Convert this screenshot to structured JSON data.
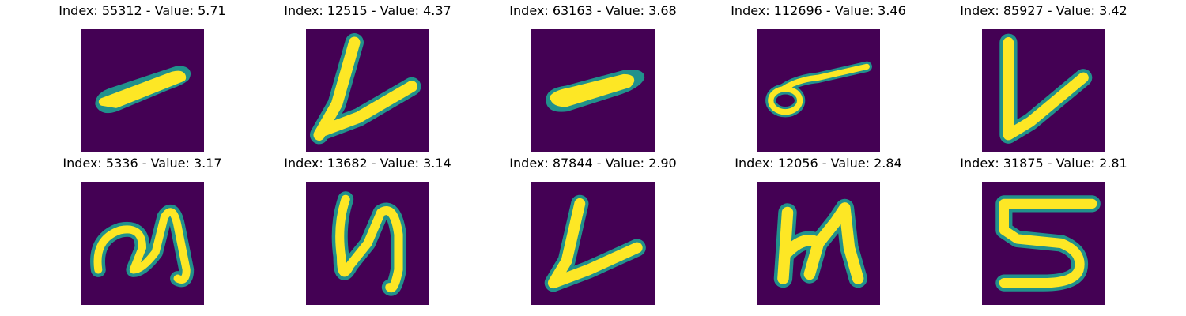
{
  "colors": {
    "background": "#440154",
    "stroke_core": "#fde725",
    "stroke_edge": "#21918c",
    "stroke_mid": "#5ec962"
  },
  "panels": [
    {
      "title": "Index: 55312 - Value: 5.71",
      "glyph": "dash-stroke"
    },
    {
      "title": "Index: 12515 - Value: 4.37",
      "glyph": "v-stroke"
    },
    {
      "title": "Index: 63163 - Value: 3.68",
      "glyph": "dash-stroke"
    },
    {
      "title": "Index: 112696 - Value: 3.46",
      "glyph": "loop-stroke"
    },
    {
      "title": "Index: 85927 - Value: 3.42",
      "glyph": "v-stroke"
    },
    {
      "title": "Index: 5336 - Value: 3.17",
      "glyph": "z-stroke"
    },
    {
      "title": "Index: 13682 - Value: 3.14",
      "glyph": "h-stroke"
    },
    {
      "title": "Index: 87844 - Value: 2.90",
      "glyph": "v-stroke"
    },
    {
      "title": "Index: 12056 - Value: 2.84",
      "glyph": "u-stroke"
    },
    {
      "title": "Index: 31875 - Value: 2.81",
      "glyph": "five-stroke"
    }
  ]
}
